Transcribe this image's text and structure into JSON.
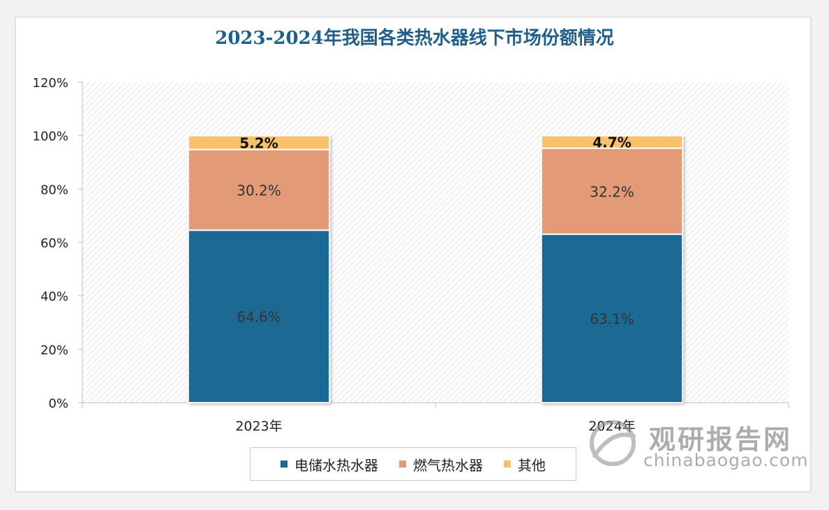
{
  "chart_data": {
    "type": "bar",
    "stacked": true,
    "title": "2023-2024年我国各类热水器线下市场份额情况",
    "categories": [
      "2023年",
      "2024年"
    ],
    "series": [
      {
        "name": "电储水热水器",
        "values": [
          64.6,
          63.1
        ],
        "labels": [
          "64.6%",
          "63.1%"
        ],
        "color": "#1b6a93",
        "label_color": "#333333"
      },
      {
        "name": "燃气热水器",
        "values": [
          30.2,
          32.2
        ],
        "labels": [
          "30.2%",
          "32.2%"
        ],
        "color": "#e29b76",
        "label_color": "#333333"
      },
      {
        "name": "其他",
        "values": [
          5.2,
          4.7
        ],
        "labels": [
          "5.2%",
          "4.7%"
        ],
        "color": "#f8c16b",
        "label_color": "#111111"
      }
    ],
    "y_ticks": [
      0,
      20,
      40,
      60,
      80,
      100,
      120
    ],
    "y_tick_labels": [
      "0%",
      "20%",
      "40%",
      "60%",
      "80%",
      "100%",
      "120%"
    ],
    "ylim": [
      0,
      120
    ],
    "grid": false,
    "legend_position": "bottom"
  },
  "watermark": {
    "name": "观研报告网",
    "url": "chinabaogao.com"
  }
}
